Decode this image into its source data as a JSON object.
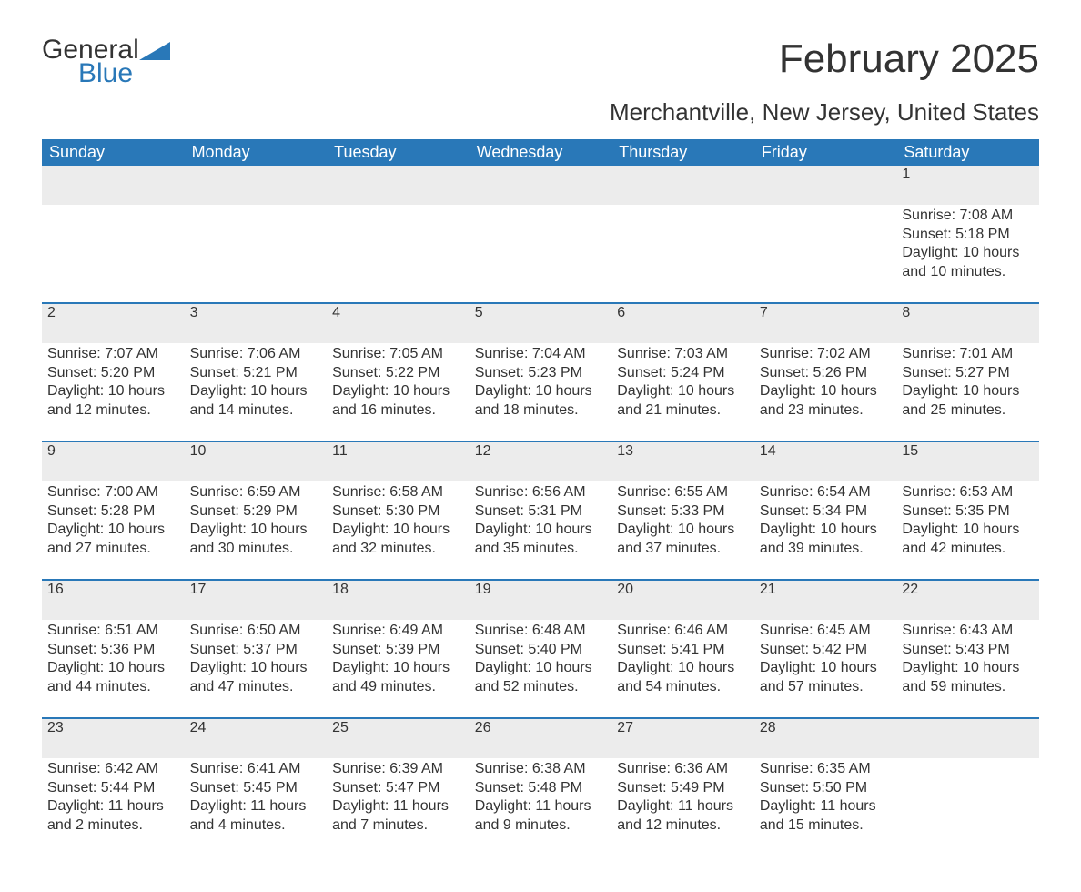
{
  "brand": {
    "word1": "General",
    "word2": "Blue",
    "accent_color": "#2978b8"
  },
  "title": "February 2025",
  "location": "Merchantville, New Jersey, United States",
  "header_bg": "#2978b8",
  "header_text_color": "#ffffff",
  "daynum_bg": "#ececec",
  "text_color": "#333333",
  "day_names": [
    "Sunday",
    "Monday",
    "Tuesday",
    "Wednesday",
    "Thursday",
    "Friday",
    "Saturday"
  ],
  "labels": {
    "sunrise": "Sunrise:",
    "sunset": "Sunset:",
    "daylight": "Daylight:"
  },
  "start_day_index": 6,
  "days": [
    {
      "n": 1,
      "sunrise": "7:08 AM",
      "sunset": "5:18 PM",
      "daylight": "10 hours and 10 minutes."
    },
    {
      "n": 2,
      "sunrise": "7:07 AM",
      "sunset": "5:20 PM",
      "daylight": "10 hours and 12 minutes."
    },
    {
      "n": 3,
      "sunrise": "7:06 AM",
      "sunset": "5:21 PM",
      "daylight": "10 hours and 14 minutes."
    },
    {
      "n": 4,
      "sunrise": "7:05 AM",
      "sunset": "5:22 PM",
      "daylight": "10 hours and 16 minutes."
    },
    {
      "n": 5,
      "sunrise": "7:04 AM",
      "sunset": "5:23 PM",
      "daylight": "10 hours and 18 minutes."
    },
    {
      "n": 6,
      "sunrise": "7:03 AM",
      "sunset": "5:24 PM",
      "daylight": "10 hours and 21 minutes."
    },
    {
      "n": 7,
      "sunrise": "7:02 AM",
      "sunset": "5:26 PM",
      "daylight": "10 hours and 23 minutes."
    },
    {
      "n": 8,
      "sunrise": "7:01 AM",
      "sunset": "5:27 PM",
      "daylight": "10 hours and 25 minutes."
    },
    {
      "n": 9,
      "sunrise": "7:00 AM",
      "sunset": "5:28 PM",
      "daylight": "10 hours and 27 minutes."
    },
    {
      "n": 10,
      "sunrise": "6:59 AM",
      "sunset": "5:29 PM",
      "daylight": "10 hours and 30 minutes."
    },
    {
      "n": 11,
      "sunrise": "6:58 AM",
      "sunset": "5:30 PM",
      "daylight": "10 hours and 32 minutes."
    },
    {
      "n": 12,
      "sunrise": "6:56 AM",
      "sunset": "5:31 PM",
      "daylight": "10 hours and 35 minutes."
    },
    {
      "n": 13,
      "sunrise": "6:55 AM",
      "sunset": "5:33 PM",
      "daylight": "10 hours and 37 minutes."
    },
    {
      "n": 14,
      "sunrise": "6:54 AM",
      "sunset": "5:34 PM",
      "daylight": "10 hours and 39 minutes."
    },
    {
      "n": 15,
      "sunrise": "6:53 AM",
      "sunset": "5:35 PM",
      "daylight": "10 hours and 42 minutes."
    },
    {
      "n": 16,
      "sunrise": "6:51 AM",
      "sunset": "5:36 PM",
      "daylight": "10 hours and 44 minutes."
    },
    {
      "n": 17,
      "sunrise": "6:50 AM",
      "sunset": "5:37 PM",
      "daylight": "10 hours and 47 minutes."
    },
    {
      "n": 18,
      "sunrise": "6:49 AM",
      "sunset": "5:39 PM",
      "daylight": "10 hours and 49 minutes."
    },
    {
      "n": 19,
      "sunrise": "6:48 AM",
      "sunset": "5:40 PM",
      "daylight": "10 hours and 52 minutes."
    },
    {
      "n": 20,
      "sunrise": "6:46 AM",
      "sunset": "5:41 PM",
      "daylight": "10 hours and 54 minutes."
    },
    {
      "n": 21,
      "sunrise": "6:45 AM",
      "sunset": "5:42 PM",
      "daylight": "10 hours and 57 minutes."
    },
    {
      "n": 22,
      "sunrise": "6:43 AM",
      "sunset": "5:43 PM",
      "daylight": "10 hours and 59 minutes."
    },
    {
      "n": 23,
      "sunrise": "6:42 AM",
      "sunset": "5:44 PM",
      "daylight": "11 hours and 2 minutes."
    },
    {
      "n": 24,
      "sunrise": "6:41 AM",
      "sunset": "5:45 PM",
      "daylight": "11 hours and 4 minutes."
    },
    {
      "n": 25,
      "sunrise": "6:39 AM",
      "sunset": "5:47 PM",
      "daylight": "11 hours and 7 minutes."
    },
    {
      "n": 26,
      "sunrise": "6:38 AM",
      "sunset": "5:48 PM",
      "daylight": "11 hours and 9 minutes."
    },
    {
      "n": 27,
      "sunrise": "6:36 AM",
      "sunset": "5:49 PM",
      "daylight": "11 hours and 12 minutes."
    },
    {
      "n": 28,
      "sunrise": "6:35 AM",
      "sunset": "5:50 PM",
      "daylight": "11 hours and 15 minutes."
    }
  ]
}
